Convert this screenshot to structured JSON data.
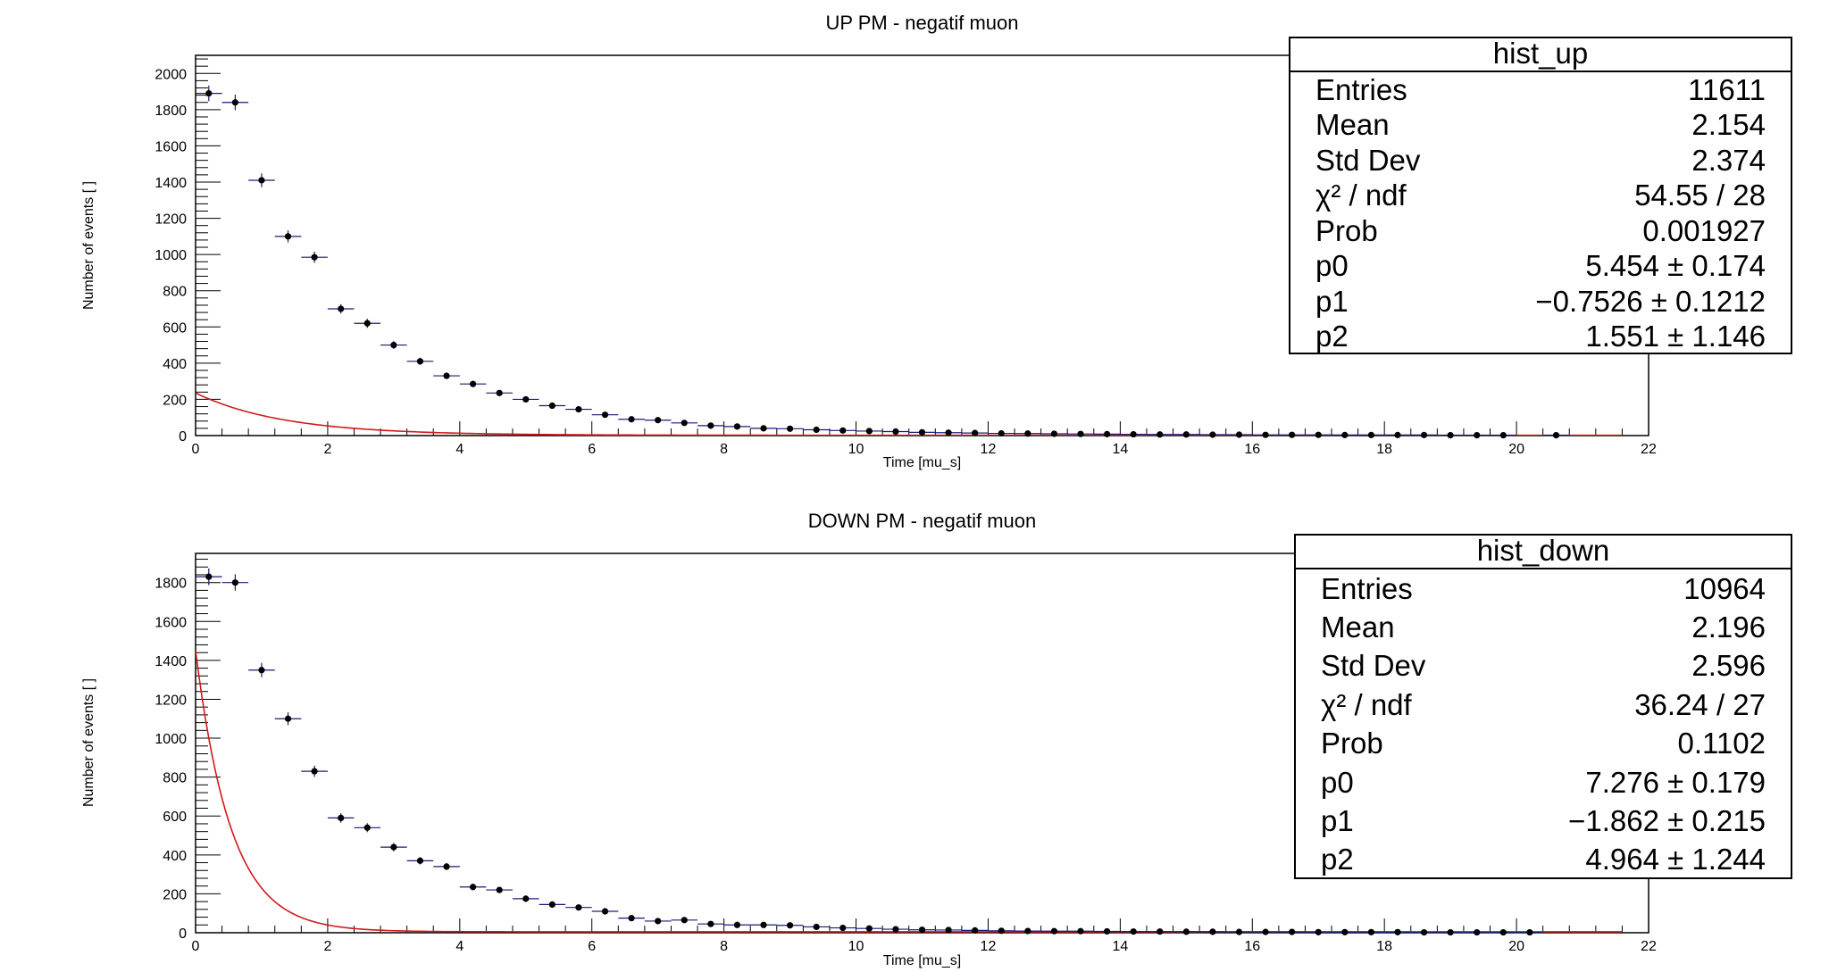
{
  "panels": [
    {
      "title": "UP PM - negatif muon",
      "stats": {
        "name": "hist_up",
        "rows": [
          {
            "label": "Entries",
            "value": "11611"
          },
          {
            "label": "Mean",
            "value": "2.154"
          },
          {
            "label": "Std Dev",
            "value": "2.374"
          },
          {
            "label": "χ² / ndf",
            "value": "54.55 / 28"
          },
          {
            "label": "Prob",
            "value": "0.001927"
          },
          {
            "label": "p0",
            "value": "5.454 ± 0.174"
          },
          {
            "label": "p1",
            "value": "−0.7526 ± 0.1212"
          },
          {
            "label": "p2",
            "value": "1.551 ± 1.146"
          }
        ]
      }
    },
    {
      "title": "DOWN PM - negatif muon",
      "stats": {
        "name": "hist_down",
        "rows": [
          {
            "label": "Entries",
            "value": "10964"
          },
          {
            "label": "Mean",
            "value": "2.196"
          },
          {
            "label": "Std Dev",
            "value": "2.596"
          },
          {
            "label": "χ² / ndf",
            "value": "36.24 / 27"
          },
          {
            "label": "Prob",
            "value": "0.1102"
          },
          {
            "label": "p0",
            "value": "7.276 ± 0.179"
          },
          {
            "label": "p1",
            "value": "−1.862 ± 0.215"
          },
          {
            "label": "p2",
            "value": "4.964 ± 1.244"
          }
        ]
      }
    }
  ],
  "chart_data": [
    {
      "type": "scatter",
      "title": "UP PM - negatif muon",
      "xlabel": "Time [mu_s]",
      "ylabel": "Number of events [ ]",
      "xlim": [
        0,
        22
      ],
      "ylim": [
        0,
        2100
      ],
      "x_ticks": [
        0,
        2,
        4,
        6,
        8,
        10,
        12,
        14,
        16,
        18,
        20,
        22
      ],
      "y_ticks": [
        0,
        200,
        400,
        600,
        800,
        1000,
        1200,
        1400,
        1600,
        1800,
        2000
      ],
      "bin_width": 0.4,
      "x": [
        0.2,
        0.6,
        1.0,
        1.4,
        1.8,
        2.2,
        2.6,
        3.0,
        3.4,
        3.8,
        4.2,
        4.6,
        5.0,
        5.4,
        5.8,
        6.2,
        6.6,
        7.0,
        7.4,
        7.8,
        8.2,
        8.6,
        9.0,
        9.4,
        9.8,
        10.2,
        10.6,
        11.0,
        11.4,
        11.8,
        12.2,
        12.6,
        13.0,
        13.4,
        13.8,
        14.2,
        14.6,
        15.0,
        15.4,
        15.8,
        16.2,
        16.6,
        17.0,
        17.4,
        17.8,
        18.2,
        18.6,
        19.0,
        19.4,
        19.8,
        20.6
      ],
      "y": [
        1890,
        1840,
        1410,
        1100,
        985,
        700,
        620,
        500,
        410,
        330,
        285,
        235,
        200,
        165,
        145,
        115,
        90,
        85,
        70,
        55,
        50,
        40,
        38,
        32,
        28,
        25,
        22,
        18,
        16,
        14,
        12,
        11,
        10,
        9,
        8,
        7,
        6,
        6,
        5,
        5,
        4,
        4,
        4,
        3,
        3,
        3,
        3,
        2,
        2,
        2,
        2
      ],
      "y_err": [
        43,
        43,
        38,
        33,
        31,
        26,
        25,
        22,
        20,
        18,
        17,
        15,
        14,
        13,
        12,
        11,
        9,
        9,
        8,
        7,
        7,
        6,
        6,
        6,
        5,
        5,
        5,
        4,
        4,
        4,
        3,
        3,
        3,
        3,
        3,
        3,
        2,
        2,
        2,
        2,
        2,
        2,
        2,
        2,
        2,
        2,
        2,
        1,
        1,
        1,
        1
      ],
      "fit": {
        "type": "exp",
        "p0": 5.454,
        "p1": -0.7526,
        "p2": 1.551
      }
    },
    {
      "type": "scatter",
      "title": "DOWN PM - negatif muon",
      "xlabel": "Time [mu_s]",
      "ylabel": "Number of events [ ]",
      "xlim": [
        0,
        22
      ],
      "ylim": [
        0,
        1950
      ],
      "x_ticks": [
        0,
        2,
        4,
        6,
        8,
        10,
        12,
        14,
        16,
        18,
        20,
        22
      ],
      "y_ticks": [
        0,
        200,
        400,
        600,
        800,
        1000,
        1200,
        1400,
        1600,
        1800
      ],
      "bin_width": 0.4,
      "x": [
        0.2,
        0.6,
        1.0,
        1.4,
        1.8,
        2.2,
        2.6,
        3.0,
        3.4,
        3.8,
        4.2,
        4.6,
        5.0,
        5.4,
        5.8,
        6.2,
        6.6,
        7.0,
        7.4,
        7.8,
        8.2,
        8.6,
        9.0,
        9.4,
        9.8,
        10.2,
        10.6,
        11.0,
        11.4,
        11.8,
        12.2,
        12.6,
        13.0,
        13.4,
        13.8,
        14.2,
        14.6,
        15.0,
        15.4,
        15.8,
        16.2,
        16.6,
        17.0,
        17.4,
        17.8,
        18.2,
        18.6,
        19.0,
        19.4,
        19.8,
        20.2
      ],
      "y": [
        1830,
        1800,
        1350,
        1100,
        830,
        590,
        540,
        440,
        370,
        340,
        235,
        220,
        175,
        145,
        130,
        110,
        75,
        60,
        65,
        45,
        40,
        40,
        38,
        30,
        25,
        22,
        18,
        15,
        14,
        12,
        10,
        9,
        8,
        8,
        7,
        6,
        6,
        5,
        5,
        4,
        4,
        4,
        3,
        3,
        3,
        3,
        2,
        2,
        2,
        2,
        2
      ],
      "y_err": [
        43,
        42,
        37,
        33,
        29,
        24,
        23,
        21,
        19,
        18,
        15,
        15,
        13,
        12,
        11,
        10,
        9,
        8,
        8,
        7,
        6,
        6,
        6,
        5,
        5,
        5,
        4,
        4,
        4,
        3,
        3,
        3,
        3,
        3,
        3,
        2,
        2,
        2,
        2,
        2,
        2,
        2,
        2,
        2,
        2,
        2,
        1,
        1,
        1,
        1,
        1
      ],
      "fit": {
        "type": "exp",
        "p0": 7.276,
        "p1": -1.862,
        "p2": 4.964
      }
    }
  ]
}
